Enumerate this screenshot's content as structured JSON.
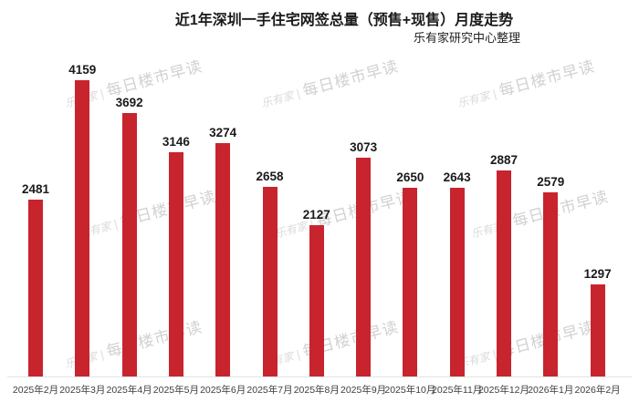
{
  "header": {
    "title": "近1年深圳一手住宅网签总量（预售+现售）月度走势",
    "subtitle": "乐有家研究中心整理"
  },
  "watermark": {
    "brand": "乐有家",
    "separator": "|",
    "text": "每日楼市早读"
  },
  "colors": {
    "bar": "#C8242E",
    "title": "#1a1a1a",
    "value_label": "#1a1a1a",
    "axis_label": "#3d3d3d",
    "watermark": "#c9c9c9",
    "baseline": "#e2e2e2",
    "background": "#ffffff"
  },
  "chart_data": {
    "type": "bar",
    "title": "近1年深圳一手住宅网签总量（预售+现售）月度走势",
    "subtitle": "乐有家研究中心整理",
    "categories": [
      "2025年2月",
      "2025年3月",
      "2025年4月",
      "2025年5月",
      "2025年6月",
      "2025年7月",
      "2025年8月",
      "2025年9月",
      "2025年10月",
      "2025年11月",
      "2025年12月",
      "2026年1月",
      "2026年2月"
    ],
    "values": [
      2481,
      4159,
      3692,
      3146,
      3274,
      2658,
      2127,
      3073,
      2650,
      2643,
      2887,
      2579,
      1297
    ],
    "xlabel": "",
    "ylabel": "",
    "ylim": [
      0,
      4500
    ],
    "bar_color": "#C8242E",
    "grid": false,
    "legend": false,
    "data_labels": true,
    "data_label_position": "above-bar",
    "x_axis_visible": true,
    "y_axis_visible": false
  }
}
